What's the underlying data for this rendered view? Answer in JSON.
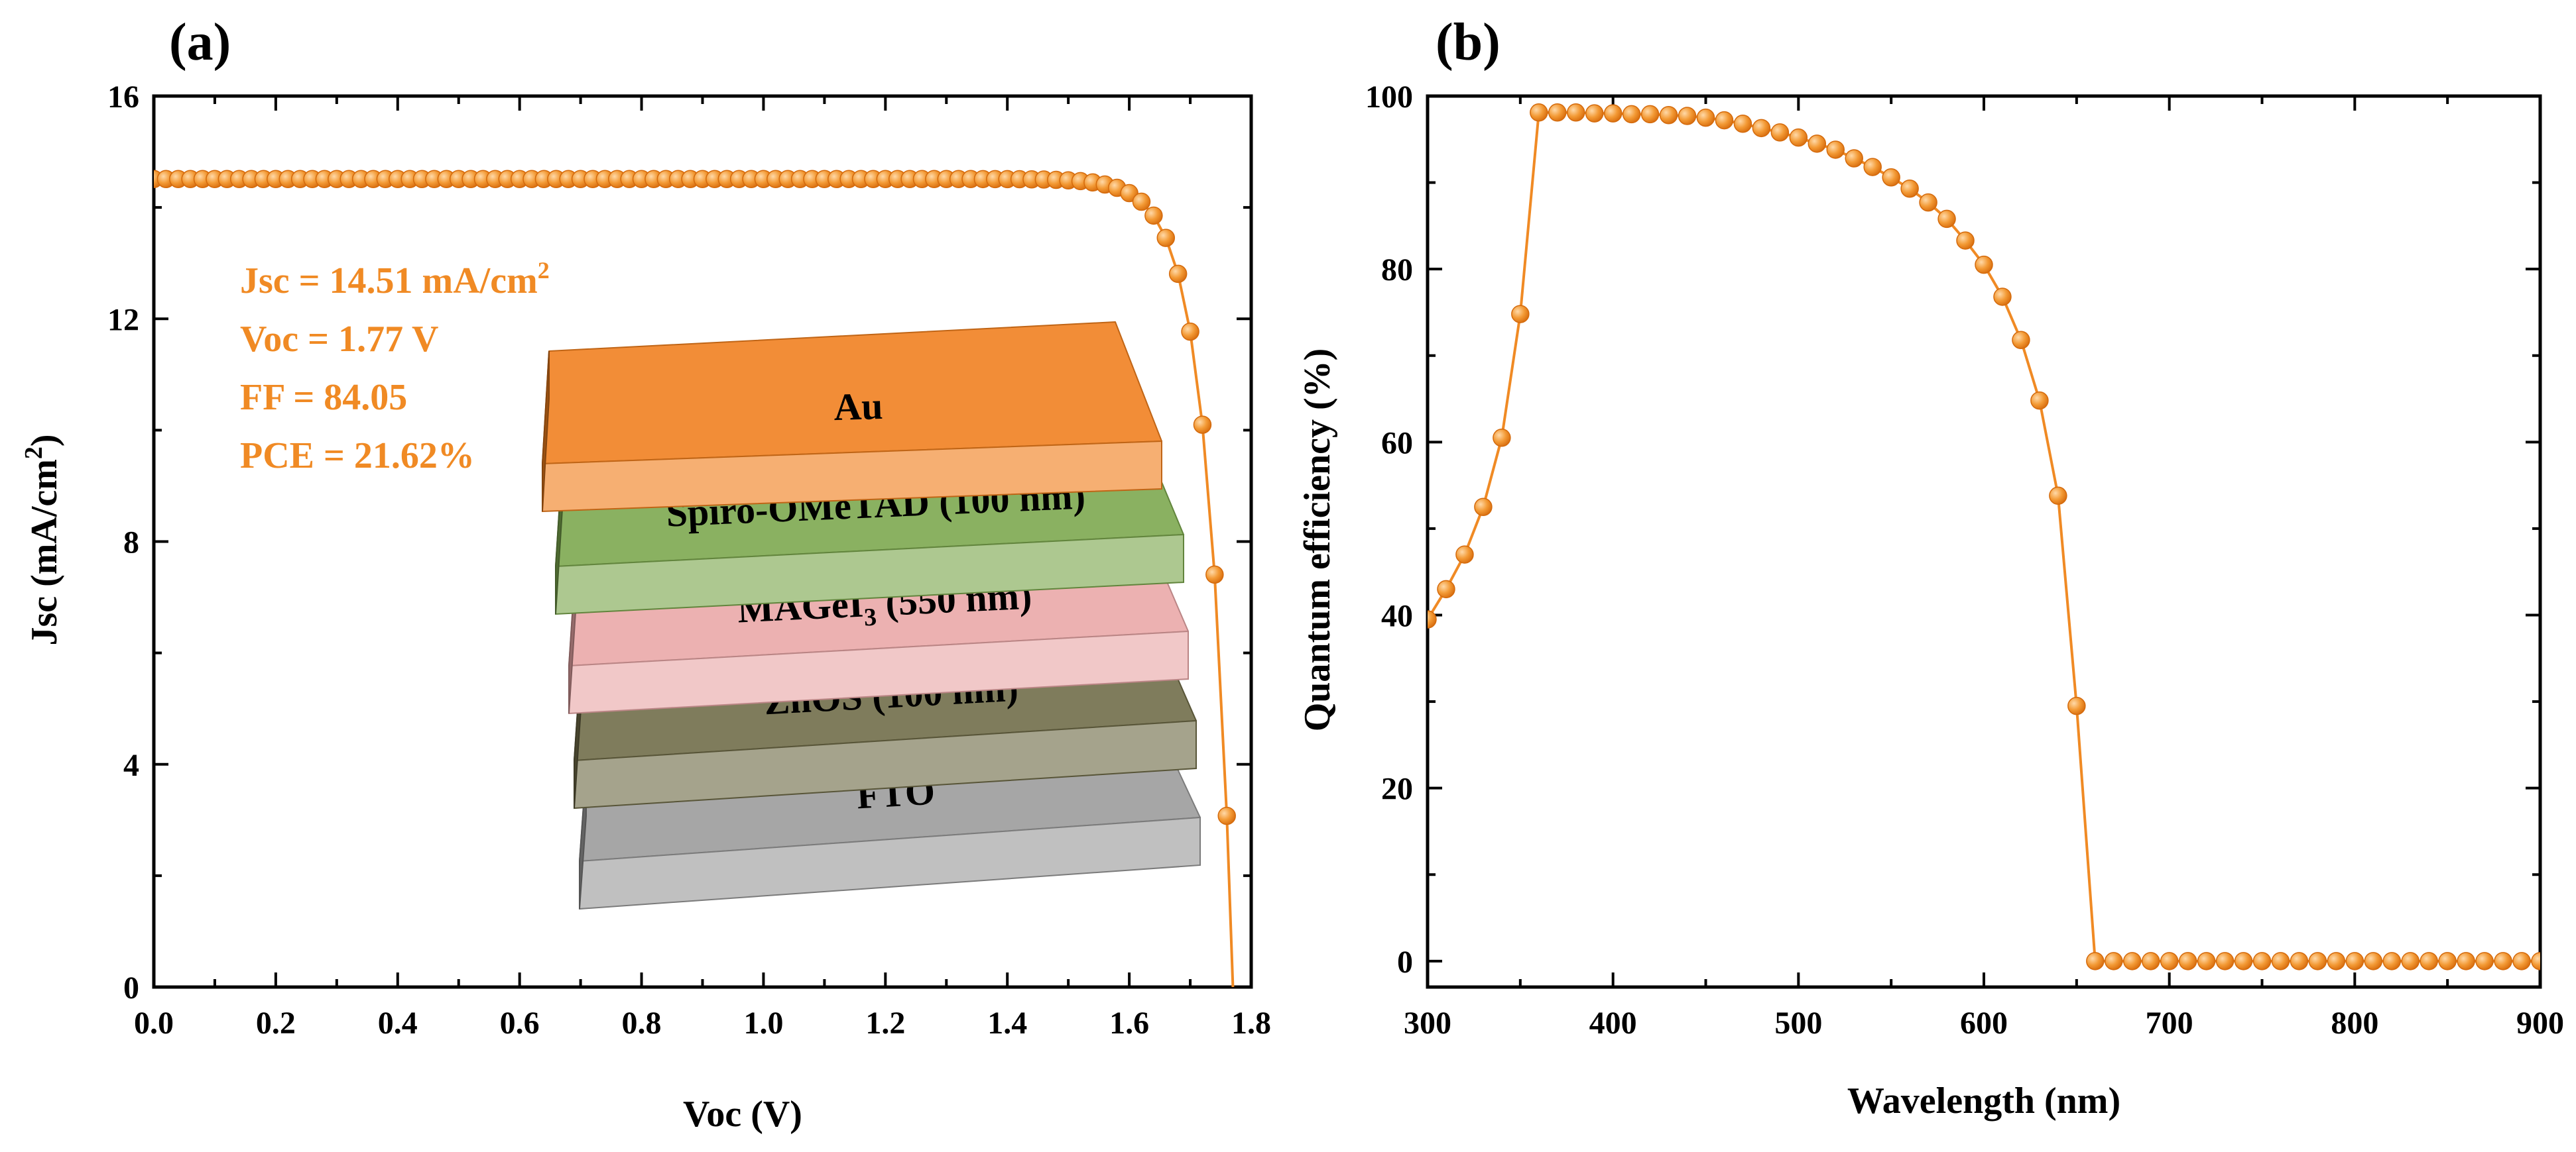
{
  "chart_data": [
    {
      "type": "scatter",
      "panel": "(a)",
      "xlabel": "Voc (V)",
      "ylabel_main": "Jsc (mA/cm",
      "ylabel_sup": "2",
      "ylabel_tail": ")",
      "xlim": [
        0.0,
        1.8
      ],
      "ylim": [
        0,
        16
      ],
      "xticks": [
        "0.0",
        "0.2",
        "0.4",
        "0.6",
        "0.8",
        "1.0",
        "1.2",
        "1.4",
        "1.6",
        "1.8"
      ],
      "yticks": [
        "0",
        "4",
        "8",
        "12",
        "16"
      ],
      "series_color": "#f08a24",
      "metrics": {
        "jsc_main": "Jsc = 14.51 mA/cm",
        "jsc_sup": "2",
        "voc": "Voc  = 1.77 V",
        "ff": "FF = 84.05",
        "pce": "PCE = 21.62%"
      },
      "curve": {
        "jsc": 14.51,
        "voc": 1.77,
        "n_vt": 0.042,
        "step": 0.02
      },
      "device_layers": [
        {
          "main": "Au",
          "sub": "",
          "tail": "",
          "color": "#f07e1c"
        },
        {
          "main": "Spiro-OMeTAD (100 nm)",
          "sub": "",
          "tail": "",
          "color": "#7aa64c"
        },
        {
          "main": "MAGeI",
          "sub": "3",
          "tail": " (550 nm)",
          "color": "#e9a6a6"
        },
        {
          "main": "ZnOS (100 nm)",
          "sub": "",
          "tail": "",
          "color": "#6e6a46"
        },
        {
          "main": "FTO",
          "sub": "",
          "tail": "",
          "color": "#9a9a9a"
        }
      ]
    },
    {
      "type": "line",
      "panel": "(b)",
      "xlabel": "Wavelength (nm)",
      "ylabel": "Quantum efficiency (%)",
      "xlim": [
        300,
        900
      ],
      "ylim": [
        -3,
        100
      ],
      "xticks": [
        "300",
        "400",
        "500",
        "600",
        "700",
        "800",
        "900"
      ],
      "yticks": [
        "0",
        "20",
        "40",
        "60",
        "80",
        "100"
      ],
      "series_color": "#f08a24",
      "x": [
        300,
        310,
        320,
        330,
        340,
        350,
        360,
        370,
        380,
        390,
        400,
        410,
        420,
        430,
        440,
        450,
        460,
        470,
        480,
        490,
        500,
        510,
        520,
        530,
        540,
        550,
        560,
        570,
        580,
        590,
        600,
        610,
        620,
        630,
        640,
        650,
        660,
        670,
        680,
        690,
        700,
        710,
        720,
        730,
        740,
        750,
        760,
        770,
        780,
        790,
        800,
        810,
        820,
        830,
        840,
        850,
        860,
        870,
        880,
        890,
        900
      ],
      "y": [
        39.5,
        43,
        47,
        52.5,
        60.5,
        74.8,
        98.1,
        98.1,
        98.1,
        98,
        98,
        97.9,
        97.9,
        97.8,
        97.7,
        97.5,
        97.2,
        96.8,
        96.3,
        95.8,
        95.2,
        94.5,
        93.8,
        92.8,
        91.8,
        90.6,
        89.3,
        87.7,
        85.8,
        83.3,
        80.5,
        76.8,
        71.8,
        64.8,
        53.8,
        29.5,
        0,
        0,
        0,
        0,
        0,
        0,
        0,
        0,
        0,
        0,
        0,
        0,
        0,
        0,
        0,
        0,
        0,
        0,
        0,
        0,
        0,
        0,
        0,
        0,
        0
      ]
    }
  ]
}
